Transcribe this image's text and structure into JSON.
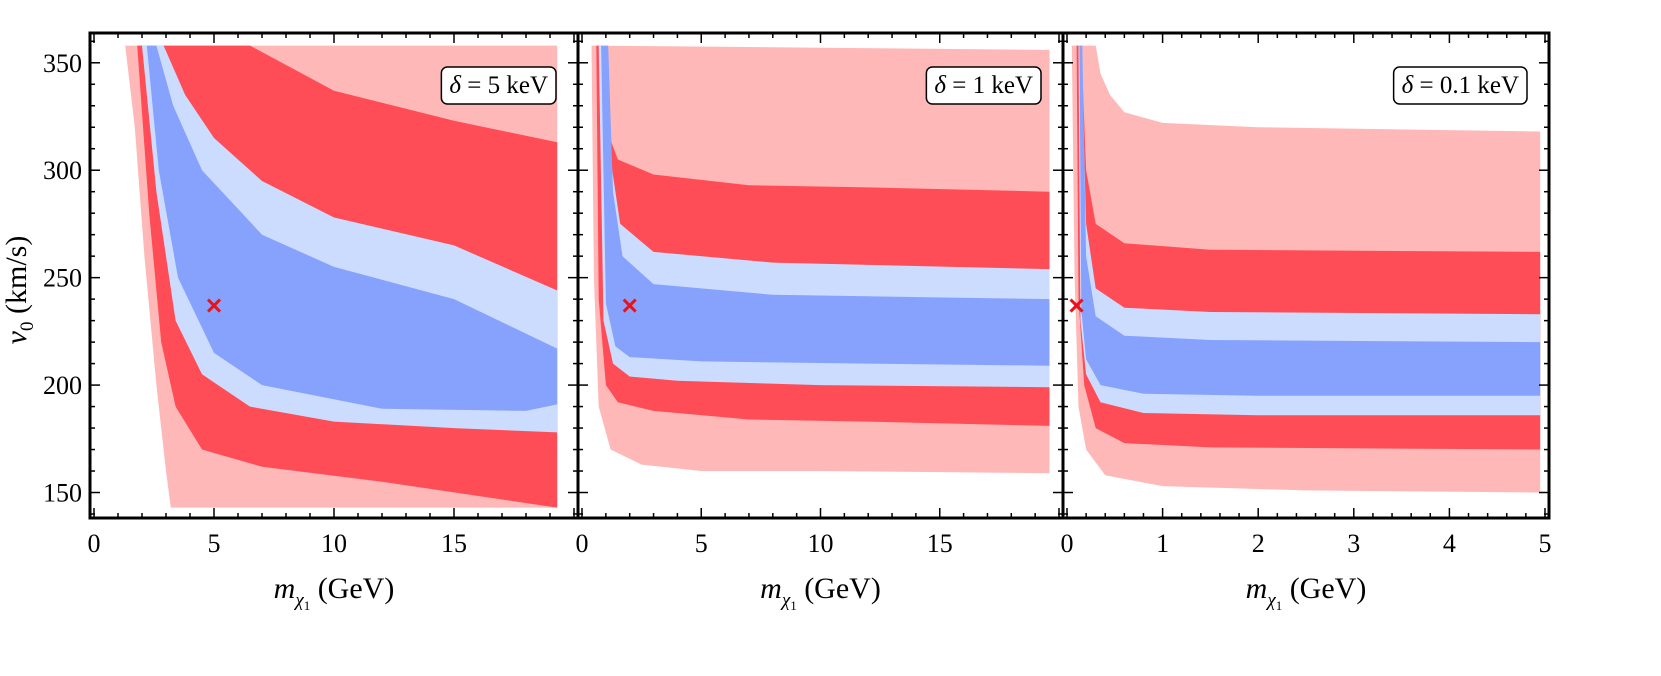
{
  "figure": {
    "ylabel": "v0 (km/s)",
    "ylabel_parts": {
      "var": "v",
      "sub": "0",
      "unit": "(km/s)"
    }
  },
  "colors": {
    "outer_red": "#ffb8b8",
    "red": "#ff4d57",
    "light_blue": "#ccdcfe",
    "blue": "#86a2fd",
    "marker": "#e8121b",
    "frame": "#000000"
  },
  "chart_data": [
    {
      "type": "area",
      "panel": "left",
      "label": "δ = 5 keV",
      "label_parts": {
        "sym": "δ",
        "rest": " = 5 keV"
      },
      "xlabel_parts": {
        "var": "m",
        "sub": "χ",
        "subsub": "1",
        "unit": " (GeV)"
      },
      "xlim": [
        0,
        20
      ],
      "ylim": [
        140,
        362
      ],
      "xticks": [
        0,
        5,
        10,
        15
      ],
      "yticks": [
        150,
        200,
        250,
        300,
        350
      ],
      "best_fit": {
        "x": 5,
        "y": 237
      },
      "bands": [
        {
          "name": "outer-red",
          "color": "outer_red",
          "upper": [
            [
              1.3,
              358
            ],
            [
              19.3,
              358
            ]
          ],
          "lower": [
            [
              1.3,
              358
            ],
            [
              1.7,
              320
            ],
            [
              2.1,
              260
            ],
            [
              2.6,
              200
            ],
            [
              3.0,
              160
            ],
            [
              3.2,
              143
            ],
            [
              19.3,
              143
            ]
          ]
        },
        {
          "name": "red",
          "color": "red",
          "upper": [
            [
              1.8,
              358
            ],
            [
              6.5,
              358
            ],
            [
              7.5,
              352
            ],
            [
              10,
              337
            ],
            [
              15,
              323
            ],
            [
              19.3,
              313
            ]
          ],
          "lower": [
            [
              1.8,
              358
            ],
            [
              2.3,
              280
            ],
            [
              2.8,
              220
            ],
            [
              3.4,
              190
            ],
            [
              4.5,
              170
            ],
            [
              7,
              162
            ],
            [
              12,
              155
            ],
            [
              19.3,
              143
            ]
          ]
        },
        {
          "name": "light-blue",
          "color": "light_blue",
          "upper": [
            [
              2.0,
              358
            ],
            [
              2.9,
              358
            ],
            [
              3.8,
              335
            ],
            [
              5,
              315
            ],
            [
              7,
              295
            ],
            [
              10,
              278
            ],
            [
              15,
              265
            ],
            [
              19.3,
              244
            ]
          ],
          "lower": [
            [
              2.0,
              358
            ],
            [
              2.6,
              290
            ],
            [
              3.4,
              230
            ],
            [
              4.5,
              205
            ],
            [
              6.5,
              190
            ],
            [
              10,
              183
            ],
            [
              15,
              180
            ],
            [
              19.3,
              178
            ]
          ]
        },
        {
          "name": "blue",
          "color": "blue",
          "upper": [
            [
              2.2,
              358
            ],
            [
              2.6,
              358
            ],
            [
              3.3,
              330
            ],
            [
              4.5,
              300
            ],
            [
              7,
              270
            ],
            [
              10,
              255
            ],
            [
              15,
              240
            ],
            [
              19.3,
              217
            ]
          ],
          "lower": [
            [
              2.2,
              358
            ],
            [
              2.7,
              300
            ],
            [
              3.5,
              250
            ],
            [
              5,
              215
            ],
            [
              7,
              200
            ],
            [
              12,
              189
            ],
            [
              18,
              188
            ],
            [
              19.3,
              191
            ]
          ]
        }
      ]
    },
    {
      "type": "area",
      "panel": "middle",
      "label": "δ = 1 keV",
      "label_parts": {
        "sym": "δ",
        "rest": " = 1 keV"
      },
      "xlabel_parts": {
        "var": "m",
        "sub": "χ",
        "subsub": "1",
        "unit": " (GeV)"
      },
      "xlim": [
        0,
        20
      ],
      "ylim": [
        140,
        362
      ],
      "xticks": [
        0,
        5,
        10,
        15
      ],
      "yticks": [
        150,
        200,
        250,
        300,
        350
      ],
      "best_fit": {
        "x": 2,
        "y": 237
      },
      "bands": [
        {
          "name": "outer-red",
          "color": "outer_red",
          "upper": [
            [
              0.4,
              358
            ],
            [
              10,
              357
            ],
            [
              19.6,
              356
            ]
          ],
          "lower": [
            [
              0.4,
              358
            ],
            [
              0.5,
              250
            ],
            [
              0.7,
              190
            ],
            [
              1.2,
              170
            ],
            [
              2.5,
              163
            ],
            [
              5,
              160
            ],
            [
              10,
              160
            ],
            [
              19.6,
              159
            ]
          ]
        },
        {
          "name": "red",
          "color": "red",
          "upper": [
            [
              0.6,
              358
            ],
            [
              0.8,
              358
            ],
            [
              1.0,
              320
            ],
            [
              1.5,
              305
            ],
            [
              3,
              298
            ],
            [
              7,
              293
            ],
            [
              12,
              292
            ],
            [
              19.6,
              290
            ]
          ],
          "lower": [
            [
              0.6,
              358
            ],
            [
              0.7,
              240
            ],
            [
              1.0,
              200
            ],
            [
              1.5,
              192
            ],
            [
              3,
              188
            ],
            [
              7,
              184
            ],
            [
              12,
              183
            ],
            [
              19.6,
              181
            ]
          ]
        },
        {
          "name": "light-blue",
          "color": "light_blue",
          "upper": [
            [
              0.7,
              358
            ],
            [
              1.0,
              358
            ],
            [
              1.2,
              305
            ],
            [
              1.6,
              275
            ],
            [
              3,
              262
            ],
            [
              8,
              257
            ],
            [
              19.6,
              254
            ]
          ],
          "lower": [
            [
              0.7,
              358
            ],
            [
              0.9,
              230
            ],
            [
              1.3,
              210
            ],
            [
              2,
              204
            ],
            [
              4,
              202
            ],
            [
              10,
              200
            ],
            [
              19.6,
              199
            ]
          ]
        },
        {
          "name": "blue",
          "color": "blue",
          "upper": [
            [
              0.8,
              358
            ],
            [
              1.1,
              358
            ],
            [
              1.3,
              290
            ],
            [
              1.7,
              260
            ],
            [
              3,
              247
            ],
            [
              8,
              242
            ],
            [
              19.6,
              240
            ]
          ],
          "lower": [
            [
              0.8,
              358
            ],
            [
              1.0,
              238
            ],
            [
              1.4,
              218
            ],
            [
              2,
              213
            ],
            [
              5,
              211
            ],
            [
              12,
              210
            ],
            [
              19.6,
              209
            ]
          ]
        }
      ]
    },
    {
      "type": "area",
      "panel": "right",
      "label": "δ = 0.1 keV",
      "label_parts": {
        "sym": "δ",
        "rest": " = 0.1 keV"
      },
      "xlabel_parts": {
        "var": "m",
        "sub": "χ",
        "subsub": "1",
        "unit": " (GeV)"
      },
      "xlim": [
        0,
        5
      ],
      "ylim": [
        140,
        362
      ],
      "xticks": [
        0,
        1,
        2,
        3,
        4,
        5
      ],
      "yticks": [
        150,
        200,
        250,
        300,
        350
      ],
      "best_fit": {
        "x": 0.1,
        "y": 237
      },
      "bands": [
        {
          "name": "outer-red",
          "color": "outer_red",
          "upper": [
            [
              0.05,
              358
            ],
            [
              0.3,
              358
            ],
            [
              0.35,
              345
            ],
            [
              0.45,
              335
            ],
            [
              0.6,
              327
            ],
            [
              1.0,
              322
            ],
            [
              2,
              320
            ],
            [
              4.95,
              318
            ]
          ],
          "lower": [
            [
              0.05,
              358
            ],
            [
              0.08,
              250
            ],
            [
              0.12,
              190
            ],
            [
              0.2,
              170
            ],
            [
              0.4,
              158
            ],
            [
              1,
              153
            ],
            [
              2.5,
              151
            ],
            [
              4.95,
              150
            ]
          ]
        },
        {
          "name": "red",
          "color": "red",
          "upper": [
            [
              0.1,
              358
            ],
            [
              0.15,
              358
            ],
            [
              0.2,
              300
            ],
            [
              0.3,
              275
            ],
            [
              0.6,
              266
            ],
            [
              1.5,
              263
            ],
            [
              4.95,
              262
            ]
          ],
          "lower": [
            [
              0.1,
              358
            ],
            [
              0.12,
              240
            ],
            [
              0.18,
              200
            ],
            [
              0.3,
              180
            ],
            [
              0.6,
              173
            ],
            [
              1.5,
              171
            ],
            [
              4.95,
              170
            ]
          ]
        },
        {
          "name": "light-blue",
          "color": "light_blue",
          "upper": [
            [
              0.12,
              358
            ],
            [
              0.15,
              358
            ],
            [
              0.2,
              275
            ],
            [
              0.3,
              245
            ],
            [
              0.6,
              236
            ],
            [
              1.5,
              234
            ],
            [
              4.95,
              233
            ]
          ],
          "lower": [
            [
              0.12,
              358
            ],
            [
              0.14,
              230
            ],
            [
              0.2,
              205
            ],
            [
              0.35,
              192
            ],
            [
              0.8,
              187
            ],
            [
              2,
              186
            ],
            [
              4.95,
              186
            ]
          ]
        },
        {
          "name": "blue",
          "color": "blue",
          "upper": [
            [
              0.13,
              358
            ],
            [
              0.16,
              358
            ],
            [
              0.2,
              260
            ],
            [
              0.3,
              232
            ],
            [
              0.6,
              223
            ],
            [
              1.5,
              221
            ],
            [
              4.95,
              220
            ]
          ],
          "lower": [
            [
              0.13,
              358
            ],
            [
              0.15,
              235
            ],
            [
              0.2,
              212
            ],
            [
              0.35,
              200
            ],
            [
              0.8,
              196
            ],
            [
              2,
              195
            ],
            [
              4.95,
              195
            ]
          ]
        }
      ]
    }
  ]
}
